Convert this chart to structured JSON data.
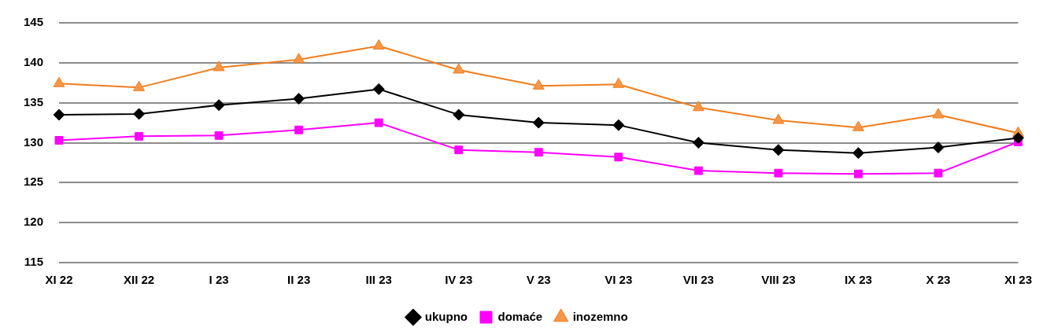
{
  "chart_data": {
    "type": "line",
    "categories": [
      "XI 22",
      "XII 22",
      "I 23",
      "II 23",
      "III 23",
      "IV 23",
      "V 23",
      "VI 23",
      "VII 23",
      "VIII 23",
      "IX 23",
      "X 23",
      "XI 23"
    ],
    "series": [
      {
        "name": "ukupno",
        "color": "#000000",
        "marker": "diamond",
        "values": [
          133.5,
          133.6,
          134.7,
          135.5,
          136.7,
          133.5,
          132.5,
          132.2,
          130.0,
          129.1,
          128.7,
          129.4,
          130.6
        ]
      },
      {
        "name": "domaće",
        "color": "#ff00ff",
        "marker": "square",
        "values": [
          130.3,
          130.8,
          130.9,
          131.6,
          132.5,
          129.1,
          128.8,
          128.2,
          126.5,
          126.2,
          126.1,
          126.2,
          130.1
        ]
      },
      {
        "name": "inozemno",
        "color": "#f07d1e",
        "marker": "triangle",
        "values": [
          137.4,
          136.9,
          139.4,
          140.4,
          142.1,
          139.1,
          137.1,
          137.3,
          134.4,
          132.8,
          131.9,
          133.5,
          131.2
        ]
      }
    ],
    "ylim": [
      115,
      145
    ],
    "yticks": [
      115,
      120,
      125,
      130,
      135,
      140,
      145
    ],
    "grid": "y",
    "legend": "bottom"
  }
}
